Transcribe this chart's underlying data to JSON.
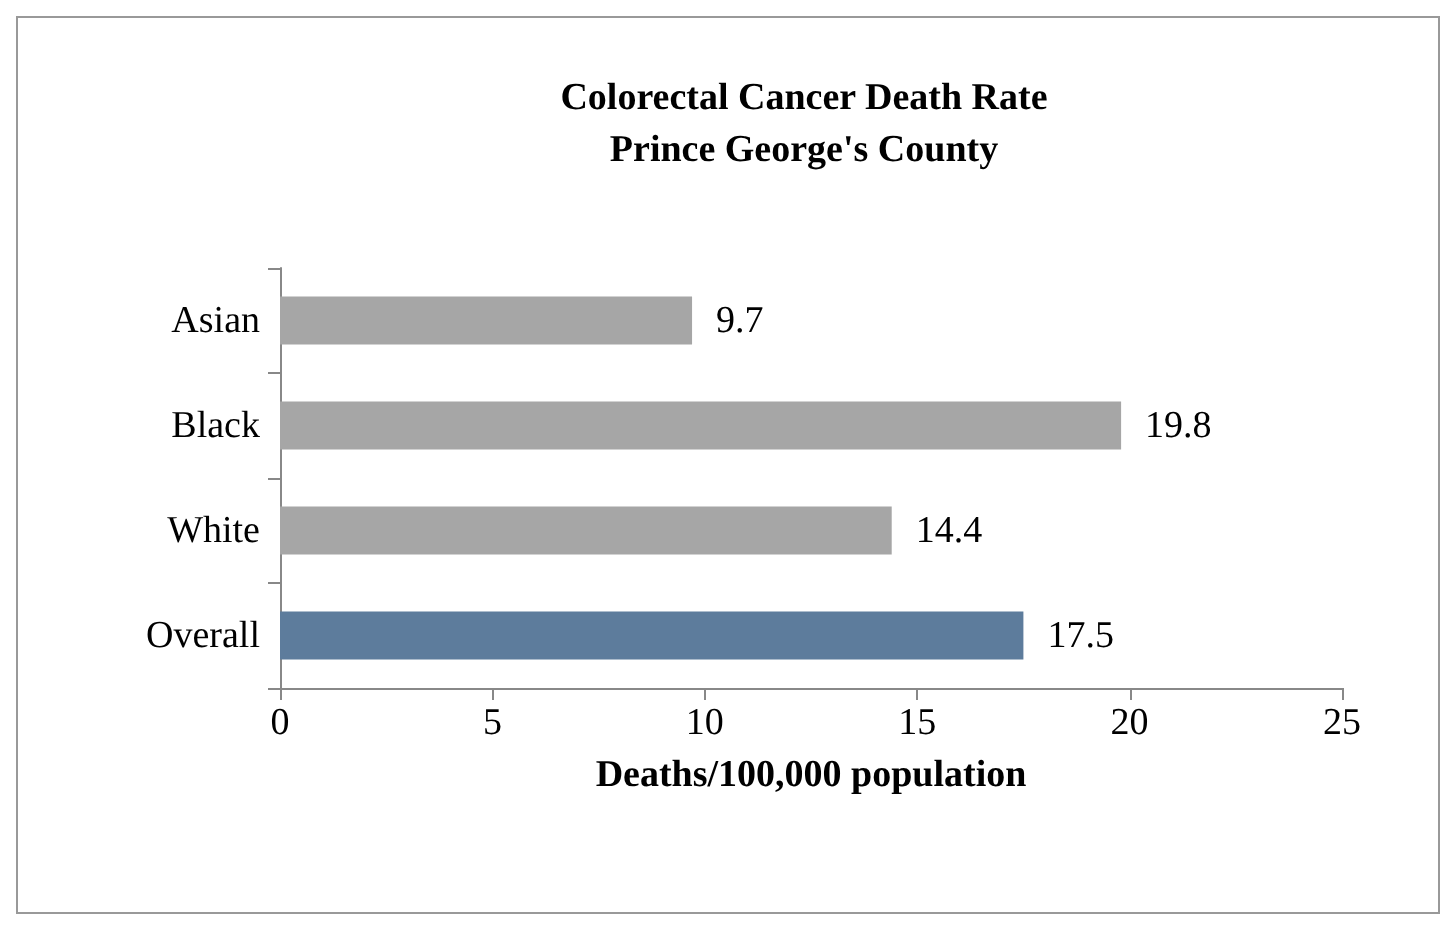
{
  "chart_data": {
    "type": "bar",
    "orientation": "horizontal",
    "title": "Colorectal Cancer Death Rate\nPrince George's County",
    "xlabel": "Deaths/100,000 population",
    "categories": [
      "Asian",
      "Black",
      "White",
      "Overall"
    ],
    "values": [
      9.7,
      19.8,
      14.4,
      17.5
    ],
    "colors": [
      "#a6a6a6",
      "#a6a6a6",
      "#a6a6a6",
      "#5d7c9c"
    ],
    "xlim": [
      0,
      25
    ],
    "xticks": [
      0,
      5,
      10,
      15,
      20,
      25
    ],
    "grid": false,
    "data_labels": true
  }
}
